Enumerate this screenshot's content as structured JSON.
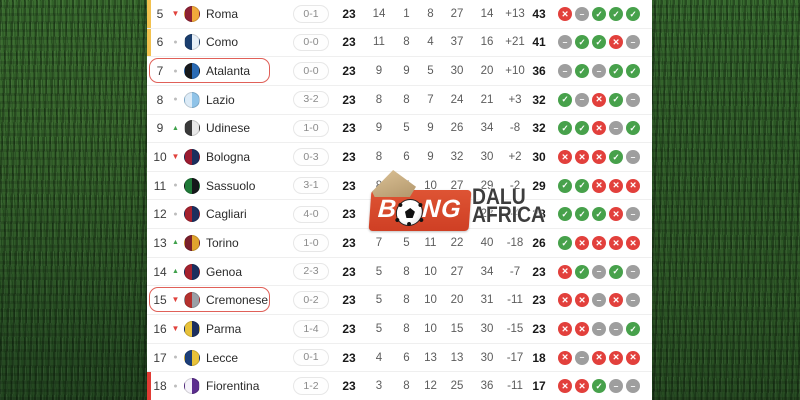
{
  "watermark": {
    "brand_b": "B",
    "brand_ng": "NG",
    "right_top": "DALU",
    "right_bottom": "AFRICA",
    "box_color": "#d9482e",
    "text_color": "#3d3d3d"
  },
  "colors": {
    "win": "#47a14b",
    "loss": "#e2403c",
    "draw": "#9e9e9e",
    "qualification_border": "#f2c14e",
    "relegation_border": "#e23b34",
    "annotation_box": "#e06058"
  },
  "table": {
    "rows": [
      {
        "pos": "5",
        "trend": "down",
        "team": "Roma",
        "score": "0-1",
        "played": "23",
        "w": "14",
        "d": "1",
        "l": "8",
        "gf": "27",
        "ga": "14",
        "gd": "+13",
        "pts": "43",
        "form": [
          "loss",
          "draw",
          "win",
          "win",
          "win"
        ],
        "edge": "yellow",
        "highlighted": false,
        "logo": [
          "#8e2033",
          "#f0a93b"
        ]
      },
      {
        "pos": "6",
        "trend": "same",
        "team": "Como",
        "score": "0-0",
        "played": "23",
        "w": "11",
        "d": "8",
        "l": "4",
        "gf": "37",
        "ga": "16",
        "gd": "+21",
        "pts": "41",
        "form": [
          "draw",
          "win",
          "win",
          "loss",
          "draw"
        ],
        "edge": "yellow",
        "highlighted": false,
        "logo": [
          "#1a3e6e",
          "#e8f0f8"
        ]
      },
      {
        "pos": "7",
        "trend": "same",
        "team": "Atalanta",
        "score": "0-0",
        "played": "23",
        "w": "9",
        "d": "9",
        "l": "5",
        "gf": "30",
        "ga": "20",
        "gd": "+10",
        "pts": "36",
        "form": [
          "draw",
          "win",
          "draw",
          "win",
          "win"
        ],
        "edge": "none",
        "highlighted": true,
        "logo": [
          "#17191c",
          "#2a6bb5"
        ]
      },
      {
        "pos": "8",
        "trend": "same",
        "team": "Lazio",
        "score": "3-2",
        "played": "23",
        "w": "8",
        "d": "8",
        "l": "7",
        "gf": "24",
        "ga": "21",
        "gd": "+3",
        "pts": "32",
        "form": [
          "win",
          "draw",
          "loss",
          "win",
          "draw"
        ],
        "edge": "none",
        "highlighted": false,
        "logo": [
          "#dcebf7",
          "#8fc3e8"
        ]
      },
      {
        "pos": "9",
        "trend": "up",
        "team": "Udinese",
        "score": "1-0",
        "played": "23",
        "w": "9",
        "d": "5",
        "l": "9",
        "gf": "26",
        "ga": "34",
        "gd": "-8",
        "pts": "32",
        "form": [
          "win",
          "win",
          "loss",
          "draw",
          "win"
        ],
        "edge": "none",
        "highlighted": false,
        "logo": [
          "#3a3a3a",
          "#e8e8e8"
        ]
      },
      {
        "pos": "10",
        "trend": "down",
        "team": "Bologna",
        "score": "0-3",
        "played": "23",
        "w": "8",
        "d": "6",
        "l": "9",
        "gf": "32",
        "ga": "30",
        "gd": "+2",
        "pts": "30",
        "form": [
          "loss",
          "loss",
          "loss",
          "win",
          "draw"
        ],
        "edge": "none",
        "highlighted": false,
        "logo": [
          "#9c1b31",
          "#1c2f5e"
        ]
      },
      {
        "pos": "11",
        "trend": "same",
        "team": "Sassuolo",
        "score": "3-1",
        "played": "23",
        "w": "8",
        "d": "5",
        "l": "10",
        "gf": "27",
        "ga": "29",
        "gd": "-2",
        "pts": "29",
        "form": [
          "win",
          "win",
          "loss",
          "loss",
          "loss"
        ],
        "edge": "none",
        "highlighted": false,
        "logo": [
          "#1f7a38",
          "#15181a"
        ]
      },
      {
        "pos": "12",
        "trend": "same",
        "team": "Cagliari",
        "score": "4-0",
        "played": "23",
        "w": "7",
        "d": "7",
        "l": "9",
        "gf": "24",
        "ga": "28",
        "gd": "-4",
        "pts": "28",
        "form": [
          "win",
          "win",
          "win",
          "loss",
          "draw"
        ],
        "edge": "none",
        "highlighted": false,
        "logo": [
          "#a5212e",
          "#1c2f5e"
        ]
      },
      {
        "pos": "13",
        "trend": "up",
        "team": "Torino",
        "score": "1-0",
        "played": "23",
        "w": "7",
        "d": "5",
        "l": "11",
        "gf": "22",
        "ga": "40",
        "gd": "-18",
        "pts": "26",
        "form": [
          "win",
          "loss",
          "loss",
          "loss",
          "loss"
        ],
        "edge": "none",
        "highlighted": false,
        "logo": [
          "#7a1f2b",
          "#e0a32e"
        ]
      },
      {
        "pos": "14",
        "trend": "up",
        "team": "Genoa",
        "score": "2-3",
        "played": "23",
        "w": "5",
        "d": "8",
        "l": "10",
        "gf": "27",
        "ga": "34",
        "gd": "-7",
        "pts": "23",
        "form": [
          "loss",
          "win",
          "draw",
          "win",
          "draw"
        ],
        "edge": "none",
        "highlighted": false,
        "logo": [
          "#a5212e",
          "#1c2f5e"
        ]
      },
      {
        "pos": "15",
        "trend": "down",
        "team": "Cremonese",
        "score": "0-2",
        "played": "23",
        "w": "5",
        "d": "8",
        "l": "10",
        "gf": "20",
        "ga": "31",
        "gd": "-11",
        "pts": "23",
        "form": [
          "loss",
          "loss",
          "draw",
          "loss",
          "draw"
        ],
        "edge": "none",
        "highlighted": true,
        "logo": [
          "#b5312e",
          "#9aa0a6"
        ]
      },
      {
        "pos": "16",
        "trend": "down",
        "team": "Parma",
        "score": "1-4",
        "played": "23",
        "w": "5",
        "d": "8",
        "l": "10",
        "gf": "15",
        "ga": "30",
        "gd": "-15",
        "pts": "23",
        "form": [
          "loss",
          "loss",
          "draw",
          "draw",
          "win"
        ],
        "edge": "none",
        "highlighted": false,
        "logo": [
          "#e8c23a",
          "#1c2f5e"
        ]
      },
      {
        "pos": "17",
        "trend": "same",
        "team": "Lecce",
        "score": "0-1",
        "played": "23",
        "w": "4",
        "d": "6",
        "l": "13",
        "gf": "13",
        "ga": "30",
        "gd": "-17",
        "pts": "18",
        "form": [
          "loss",
          "draw",
          "loss",
          "loss",
          "loss"
        ],
        "edge": "none",
        "highlighted": false,
        "logo": [
          "#1c3f7a",
          "#e8c23a"
        ]
      },
      {
        "pos": "18",
        "trend": "same",
        "team": "Fiorentina",
        "score": "1-2",
        "played": "23",
        "w": "3",
        "d": "8",
        "l": "12",
        "gf": "25",
        "ga": "36",
        "gd": "-11",
        "pts": "17",
        "form": [
          "loss",
          "loss",
          "win",
          "draw",
          "draw"
        ],
        "edge": "red",
        "highlighted": false,
        "logo": [
          "#f5f2fa",
          "#5b2d8e"
        ]
      }
    ]
  }
}
